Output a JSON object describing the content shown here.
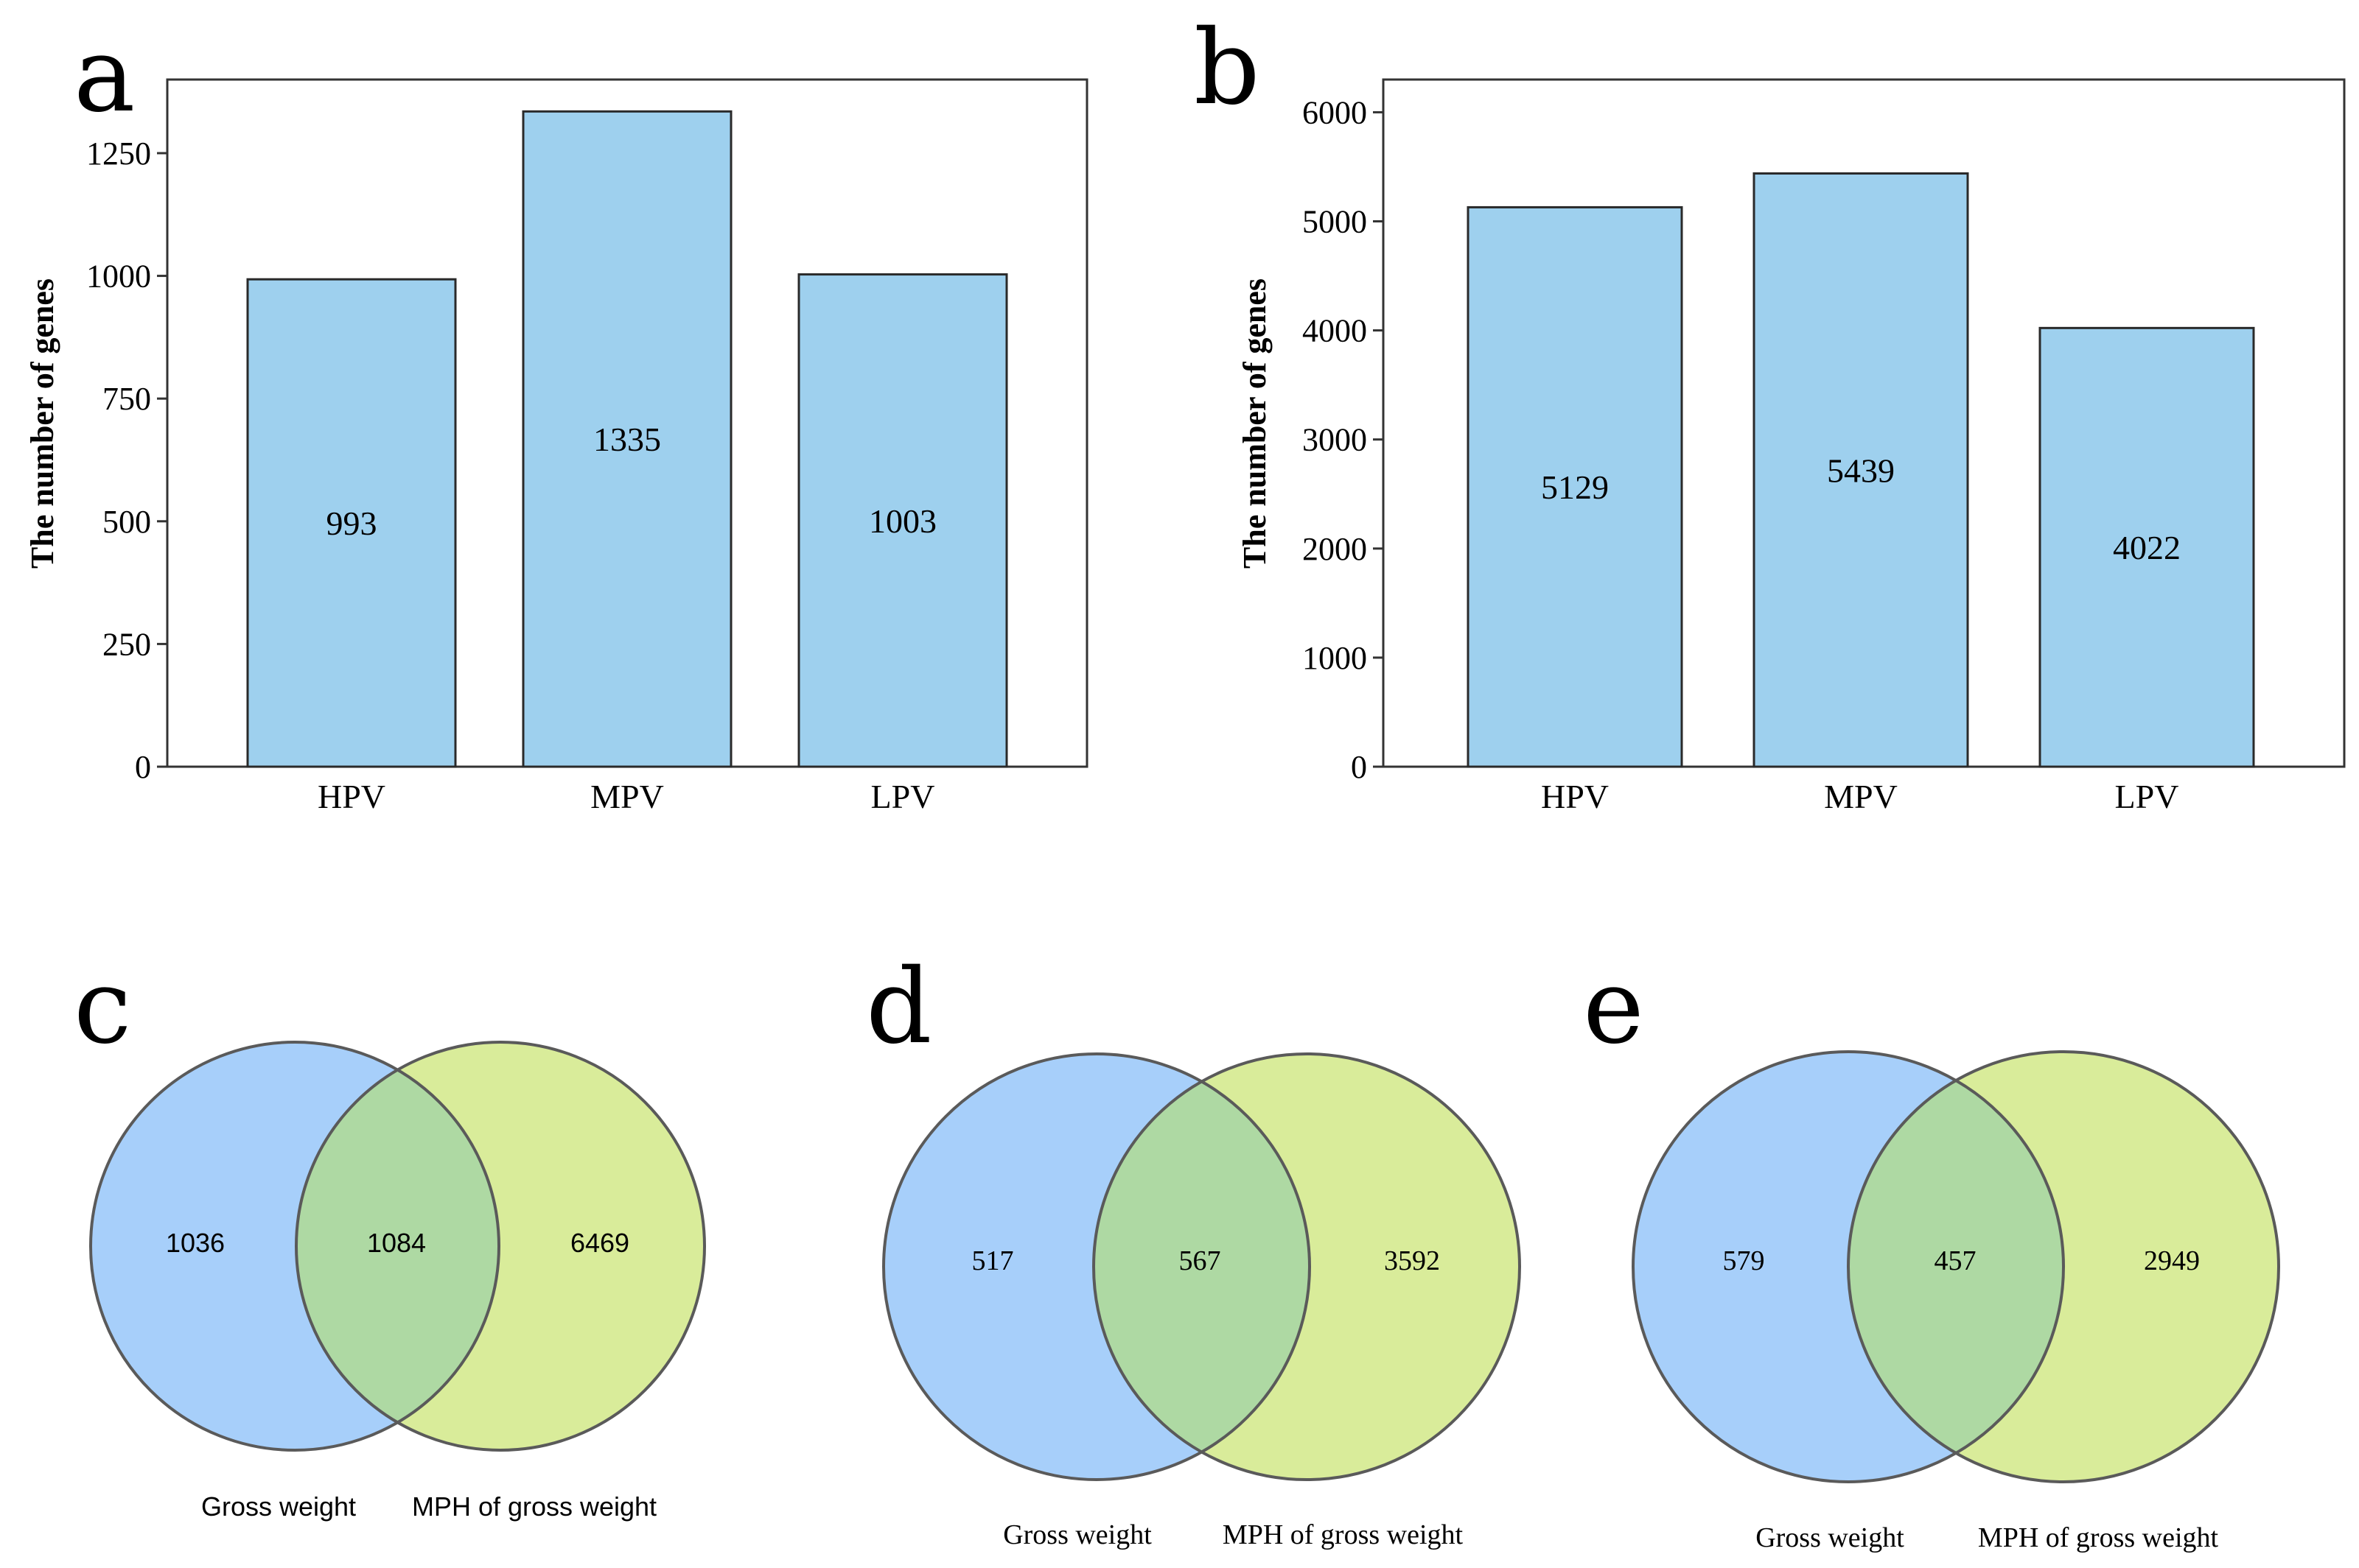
{
  "colors": {
    "bar_fill": "#9ED0EE",
    "bar_stroke": "#2a2a2a",
    "venn_left": "#A7CFFA",
    "venn_right": "#D9EC9A",
    "venn_overlap": "#AED9A3",
    "venn_stroke": "#5a5a5a"
  },
  "chart_data": [
    {
      "panel": "a",
      "type": "bar",
      "categories": [
        "HPV",
        "MPV",
        "LPV"
      ],
      "values": [
        993,
        1335,
        1003
      ],
      "value_labels": [
        "993",
        "1335",
        "1003"
      ],
      "ylabel": "The number of genes",
      "ylim": [
        0,
        1400
      ],
      "yticks": [
        0,
        250,
        500,
        750,
        1000,
        1250
      ],
      "ytick_labels": [
        "0",
        "250",
        "500",
        "750",
        "1000",
        "1250"
      ]
    },
    {
      "panel": "b",
      "type": "bar",
      "categories": [
        "HPV",
        "MPV",
        "LPV"
      ],
      "values": [
        5129,
        5439,
        4022
      ],
      "value_labels": [
        "5129",
        "5439",
        "4022"
      ],
      "ylabel": "The number of genes",
      "ylim": [
        0,
        6300
      ],
      "yticks": [
        0,
        1000,
        2000,
        3000,
        4000,
        5000,
        6000
      ],
      "ytick_labels": [
        "0",
        "1000",
        "2000",
        "3000",
        "4000",
        "5000",
        "6000"
      ]
    },
    {
      "panel": "c",
      "type": "venn",
      "sets": [
        "Gross weight",
        "MPH of gross weight"
      ],
      "left_only": "1036",
      "overlap": "1084",
      "right_only": "6469"
    },
    {
      "panel": "d",
      "type": "venn",
      "sets": [
        "Gross weight",
        "MPH of gross weight"
      ],
      "left_only": "517",
      "overlap": "567",
      "right_only": "3592"
    },
    {
      "panel": "e",
      "type": "venn",
      "sets": [
        "Gross weight",
        "MPH of gross weight"
      ],
      "left_only": "579",
      "overlap": "457",
      "right_only": "2949"
    }
  ]
}
